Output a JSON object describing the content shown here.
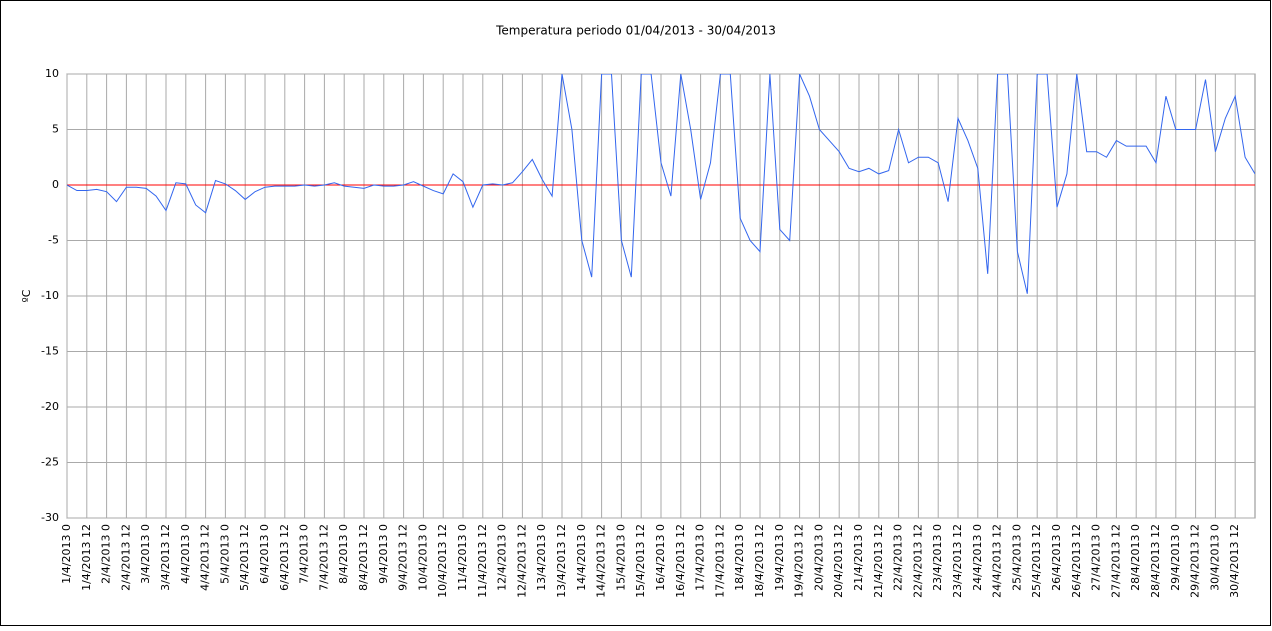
{
  "chart_data": {
    "type": "line",
    "title": "Temperatura periodo 01/04/2013 - 30/04/2013",
    "y_label": "ºC",
    "categories": [
      "1/4/2013 0",
      null,
      "1/4/2013 12",
      null,
      "2/4/2013 0",
      null,
      "2/4/2013 12",
      null,
      "3/4/2013 0",
      null,
      "3/4/2013 12",
      null,
      "4/4/2013 0",
      null,
      "4/4/2013 12",
      null,
      "5/4/2013 0",
      null,
      "5/4/2013 12",
      null,
      "6/4/2013 0",
      null,
      "6/4/2013 12",
      null,
      "7/4/2013 0",
      null,
      "7/4/2013 12",
      null,
      "8/4/2013 0",
      null,
      "8/4/2013 12",
      null,
      "9/4/2013 0",
      null,
      "9/4/2013 12",
      null,
      "10/4/2013 0",
      null,
      "10/4/2013 12",
      null,
      "11/4/2013 0",
      null,
      "11/4/2013 12",
      null,
      "12/4/2013 0",
      null,
      "12/4/2013 12",
      null,
      "13/4/2013 0",
      null,
      "13/4/2013 12",
      null,
      "14/4/2013 0",
      null,
      "14/4/2013 12",
      null,
      "15/4/2013 0",
      null,
      "15/4/2013 12",
      null,
      "16/4/2013 0",
      null,
      "16/4/2013 12",
      null,
      "17/4/2013 0",
      null,
      "17/4/2013 12",
      null,
      "18/4/2013 0",
      null,
      "18/4/2013 12",
      null,
      "19/4/2013 0",
      null,
      "19/4/2013 12",
      null,
      "20/4/2013 0",
      null,
      "20/4/2013 12",
      null,
      "21/4/2013 0",
      null,
      "21/4/2013 12",
      null,
      "22/4/2013 0",
      null,
      "22/4/2013 12",
      null,
      "23/4/2013 0",
      null,
      "23/4/2013 12",
      null,
      "24/4/2013 0",
      null,
      "24/4/2013 12",
      null,
      "25/4/2013 0",
      null,
      "25/4/2013 12",
      null,
      "26/4/2013 0",
      null,
      "26/4/2013 12",
      null,
      "27/4/2013 0",
      null,
      "27/4/2013 12",
      null,
      "28/4/2013 0",
      null,
      "28/4/2013 12",
      null,
      "29/4/2013 0",
      null,
      "29/4/2013 12",
      null,
      "30/4/2013 0",
      null,
      "30/4/2013 12",
      null,
      null
    ],
    "series": [
      {
        "name": "Temperatura",
        "color": "#3366ee",
        "values": [
          0,
          -0.5,
          -0.5,
          -0.4,
          -0.6,
          -1.5,
          -0.2,
          -0.2,
          -0.3,
          -1.0,
          -2.3,
          0.2,
          0.1,
          -1.8,
          -2.5,
          0.4,
          0.1,
          -0.5,
          -1.3,
          -0.6,
          -0.2,
          -0.1,
          -0.1,
          -0.1,
          0,
          -0.1,
          0,
          0.2,
          -0.1,
          -0.2,
          -0.3,
          0,
          -0.1,
          -0.1,
          0,
          0.3,
          -0.1,
          -0.5,
          -0.8,
          1.0,
          0.3,
          -2.0,
          0,
          0.1,
          0,
          0.2,
          1.2,
          2.3,
          0.5,
          -1,
          10,
          5,
          -5,
          -8.3,
          10,
          10,
          -5,
          -8.3,
          10,
          10,
          2,
          -1,
          10,
          5,
          -1.3,
          2,
          10,
          10,
          -3,
          -5,
          -6,
          10,
          -4,
          -5,
          10,
          8,
          5,
          4,
          3,
          1.5,
          1.2,
          1.5,
          1.0,
          1.3,
          5,
          2,
          2.5,
          2.5,
          2,
          -1.5,
          6,
          4,
          1.5,
          -8,
          10,
          10,
          -6,
          -9.8,
          10,
          10,
          -2,
          1,
          10,
          3,
          3,
          2.5,
          4,
          3.5,
          3.5,
          3.5,
          2,
          8,
          5,
          5,
          5,
          9.5,
          3,
          6,
          8,
          2.5,
          1
        ]
      }
    ],
    "ylim": [
      -30,
      10
    ],
    "yticks": [
      -30,
      -25,
      -20,
      -15,
      -10,
      -5,
      0,
      5,
      10
    ],
    "grid": true,
    "zero_line_color": "#ff0000"
  }
}
